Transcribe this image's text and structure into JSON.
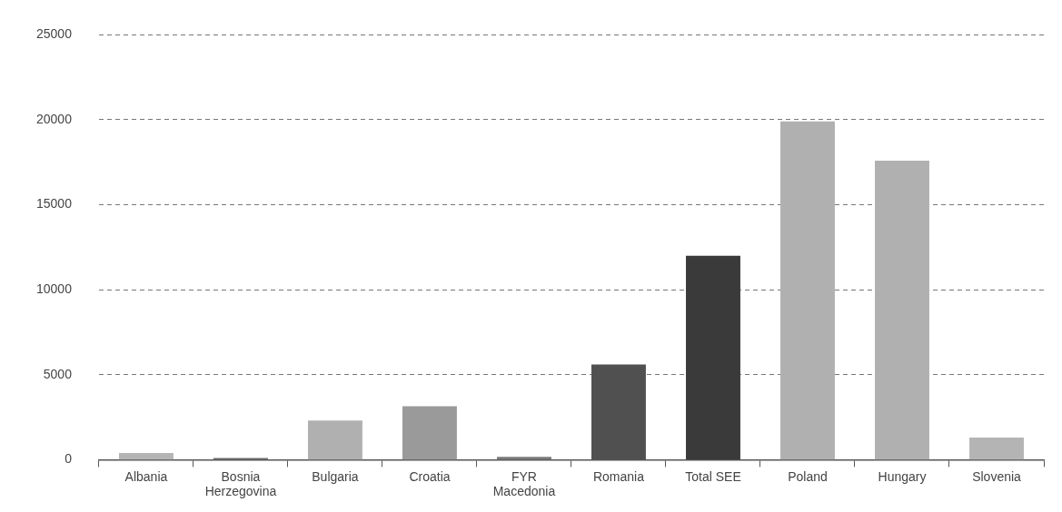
{
  "chart_data": {
    "type": "bar",
    "categories": [
      "Albania",
      "Bosnia Herzegovina",
      "Bulgaria",
      "Croatia",
      "FYR Macedonia",
      "Romania",
      "Total SEE",
      "Poland",
      "Hungary",
      "Slovenia"
    ],
    "values": [
      400,
      100,
      2300,
      3150,
      170,
      5600,
      12000,
      19900,
      17600,
      1300
    ],
    "colors": [
      "#b4b4b4",
      "#6e6e6e",
      "#b0b0b0",
      "#9a9a9a",
      "#7a7a7a",
      "#505050",
      "#3a3a3a",
      "#b0b0b0",
      "#b0b0b0",
      "#b4b4b4"
    ],
    "ylim": [
      0,
      25000
    ],
    "yticks": [
      0,
      5000,
      10000,
      15000,
      20000,
      25000
    ],
    "grid": "y",
    "line_style": "dashed",
    "legend": false
  }
}
